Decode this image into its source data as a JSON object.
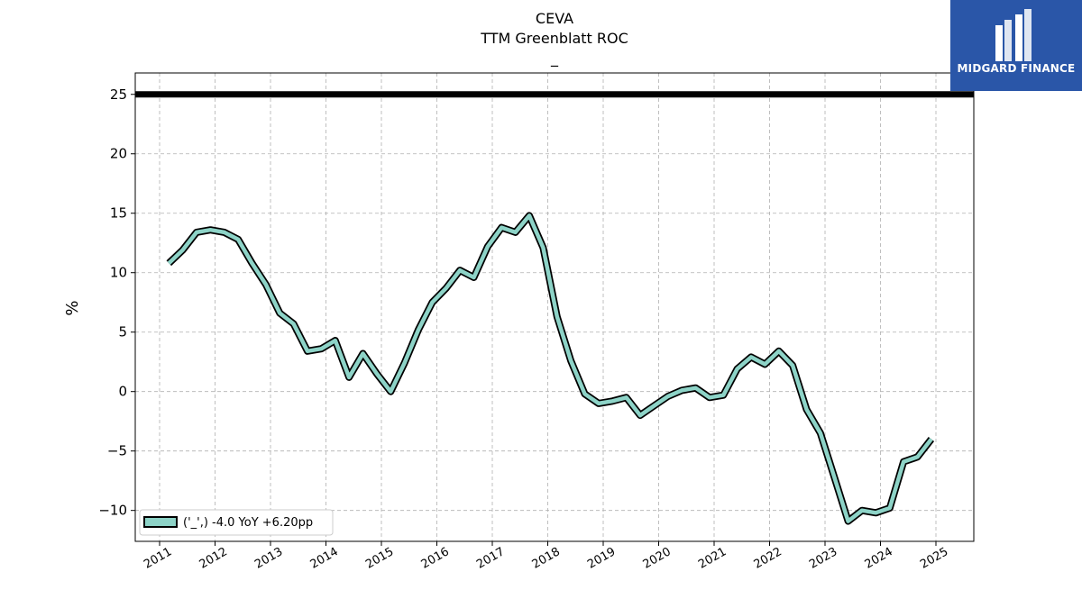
{
  "header": {
    "title": "CEVA",
    "subtitle": "TTM Greenblatt ROC",
    "sub_subtitle": "_"
  },
  "brand": {
    "name": "MIDGARD FINANCE",
    "color": "#2a56a8"
  },
  "chart_data": {
    "type": "line",
    "ylabel": "%",
    "ylim": [
      -12.6,
      26.8
    ],
    "yticks": [
      -10,
      -5,
      0,
      5,
      10,
      15,
      20,
      25
    ],
    "xticks": [
      "2011",
      "2012",
      "2013",
      "2014",
      "2015",
      "2016",
      "2017",
      "2018",
      "2019",
      "2020",
      "2021",
      "2022",
      "2023",
      "2024",
      "2025"
    ],
    "grid": true,
    "legend_position": "bottom-left",
    "reference_line": {
      "y": 25,
      "color": "#000000"
    },
    "series": [
      {
        "name": "('_',) -4.0 YoY +6.20pp",
        "line_color": "#8dd3c7",
        "edge_color": "#000000",
        "x": [
          "2011-03",
          "2011-06",
          "2011-09",
          "2011-12",
          "2012-03",
          "2012-06",
          "2012-09",
          "2012-12",
          "2013-03",
          "2013-06",
          "2013-09",
          "2013-12",
          "2014-03",
          "2014-06",
          "2014-09",
          "2014-12",
          "2015-03",
          "2015-06",
          "2015-09",
          "2015-12",
          "2016-03",
          "2016-06",
          "2016-09",
          "2016-12",
          "2017-03",
          "2017-06",
          "2017-09",
          "2017-12",
          "2018-03",
          "2018-06",
          "2018-09",
          "2018-12",
          "2019-03",
          "2019-06",
          "2019-09",
          "2019-12",
          "2020-03",
          "2020-06",
          "2020-09",
          "2020-12",
          "2021-03",
          "2021-06",
          "2021-09",
          "2021-12",
          "2022-03",
          "2022-06",
          "2022-09",
          "2022-12",
          "2023-03",
          "2023-06",
          "2023-09",
          "2023-12",
          "2024-03",
          "2024-06",
          "2024-09",
          "2024-12"
        ],
        "values": [
          10.8,
          11.9,
          13.4,
          13.6,
          13.4,
          12.8,
          10.8,
          9.0,
          6.6,
          5.7,
          3.4,
          3.6,
          4.3,
          1.2,
          3.2,
          1.5,
          0.0,
          2.4,
          5.2,
          7.5,
          8.7,
          10.2,
          9.6,
          12.2,
          13.8,
          13.4,
          14.8,
          12.1,
          6.3,
          2.6,
          -0.2,
          -1.0,
          -0.8,
          -0.5,
          -2.0,
          -1.2,
          -0.4,
          0.1,
          0.3,
          -0.5,
          -0.3,
          1.9,
          2.9,
          2.3,
          3.4,
          2.2,
          -1.5,
          -3.5,
          -7.2,
          -10.9,
          -10.0,
          -10.2,
          -9.8,
          -5.9,
          -5.5,
          -4.0
        ]
      }
    ]
  }
}
